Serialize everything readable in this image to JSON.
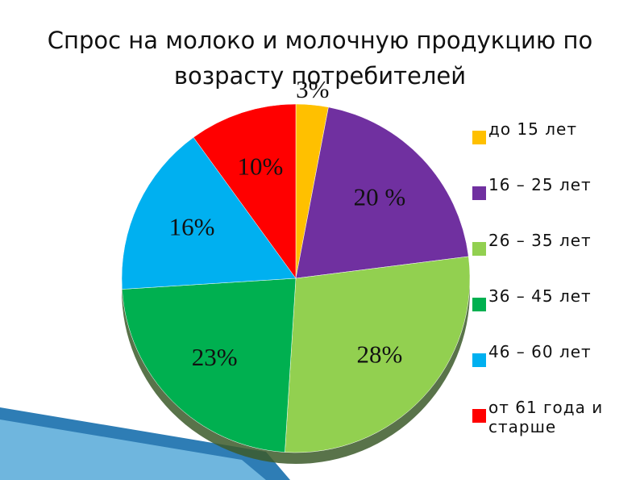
{
  "chart_data": {
    "type": "pie",
    "title": "Спрос на молоко и молочную продукцию по возрасту потребителей",
    "categories": [
      "до 15 лет",
      "16 – 25 лет",
      "26 – 35 лет",
      "36 – 45 лет",
      "46 – 60 лет",
      "от 61 года и старше"
    ],
    "values": [
      3,
      20,
      28,
      23,
      16,
      10
    ],
    "value_labels": [
      "3%",
      "20 %",
      "28%",
      "23%",
      "16%",
      "10%"
    ],
    "colors": [
      "#ffc000",
      "#7030a0",
      "#92d050",
      "#00b050",
      "#00b0f0",
      "#ff0000"
    ],
    "legend": "right"
  }
}
